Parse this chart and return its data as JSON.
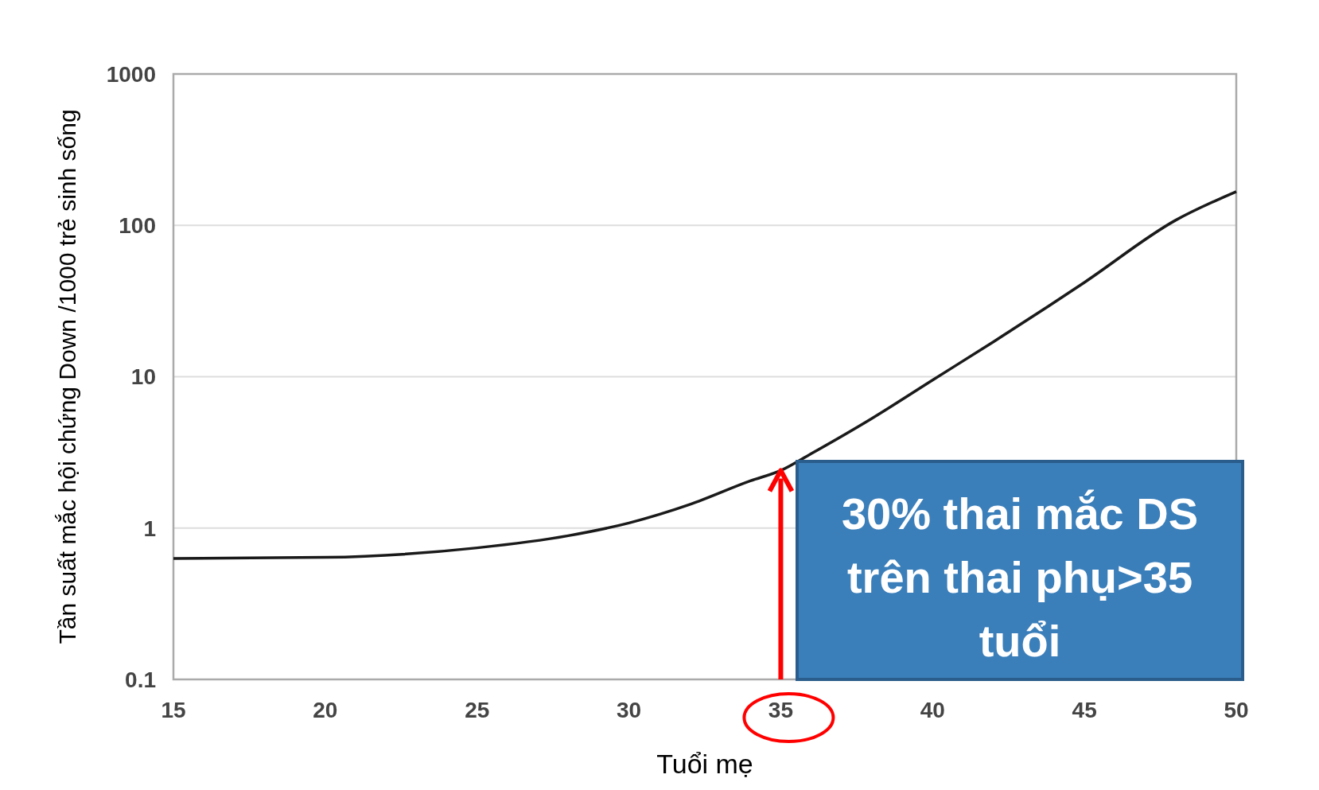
{
  "chart_data": {
    "type": "line",
    "xlabel": "Tuổi mẹ",
    "ylabel": "Tần suất mắc hội chứng Down /1000 trẻ sinh sống",
    "x": [
      15,
      20,
      25,
      28,
      30,
      32,
      34,
      35,
      36,
      38,
      40,
      42,
      45,
      48,
      50
    ],
    "series": [
      {
        "color": "#1a1a1a",
        "values": [
          0.63,
          0.64,
          0.74,
          0.89,
          1.08,
          1.43,
          2.05,
          2.4,
          3.1,
          5.3,
          9.5,
          17,
          42,
          108,
          167
        ]
      }
    ],
    "xlim": [
      15,
      50
    ],
    "xticks": [
      15,
      20,
      25,
      30,
      35,
      40,
      45,
      50
    ],
    "ylim": [
      0.1,
      1000
    ],
    "yticks": [
      0.1,
      1,
      10,
      100,
      1000
    ],
    "log": true,
    "grid": "y",
    "marker": "none",
    "line_style": "solid",
    "annotations": [
      {
        "text": "30% thai mắc DS trên thai phụ>35 tuổi",
        "x": 35,
        "y": 2.4
      }
    ]
  }
}
